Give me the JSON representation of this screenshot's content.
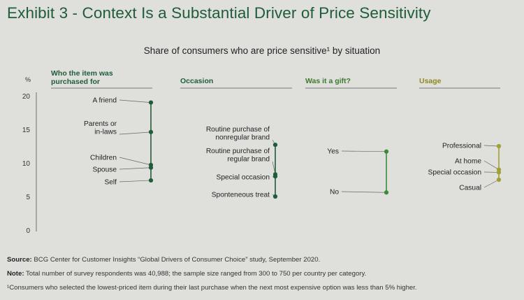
{
  "title": "Exhibit 3 - Context Is a Substantial Driver of Price Sensitivity",
  "subtitle": "Share of consumers who are price sensitive¹ by situation",
  "colors": {
    "title": "#1f5c3a",
    "dark_green": "#1f5c3a",
    "olive": "#a2a032",
    "medium_green": "#3d8a3d",
    "background": "#dfdfdc"
  },
  "chart_data": {
    "type": "scatter",
    "title": "Share of consumers who are price sensitive¹ by situation",
    "y_axis": {
      "unit": "%",
      "ticks": [
        0,
        5,
        10,
        15,
        20
      ],
      "ylim": [
        0,
        20
      ]
    },
    "grid": false,
    "legend": "none",
    "groups": [
      {
        "name": "Who the item was purchased for",
        "color": "#1f5c3a",
        "points": [
          {
            "label": "A friend",
            "value": 19.0
          },
          {
            "label": "Parents or in-laws",
            "value": 14.6
          },
          {
            "label": "Children",
            "value": 9.7
          },
          {
            "label": "Spouse",
            "value": 9.3
          },
          {
            "label": "Self",
            "value": 7.4
          }
        ]
      },
      {
        "name": "Occasion",
        "color": "#1f5c3a",
        "points": [
          {
            "label": "Routine purchase of nonregular brand",
            "value": 12.7
          },
          {
            "label": "Routine purchase of regular brand",
            "value": 8.3
          },
          {
            "label": "Special occasion",
            "value": 8.0
          },
          {
            "label": "Sponteneous treat",
            "value": 5.0
          }
        ]
      },
      {
        "name": "Was it a gift?",
        "color": "#3d8a3d",
        "points": [
          {
            "label": "Yes",
            "value": 11.7
          },
          {
            "label": "No",
            "value": 5.6
          }
        ]
      },
      {
        "name": "Usage",
        "color": "#a2a032",
        "points": [
          {
            "label": "Professional",
            "value": 12.5
          },
          {
            "label": "At home",
            "value": 9.0
          },
          {
            "label": "Special occasion",
            "value": 8.6
          },
          {
            "label": "Casual",
            "value": 7.5
          }
        ]
      }
    ]
  },
  "footer": {
    "source_label": "Source:",
    "source_text": " BCG Center for Customer Insights “Global Drivers of Consumer Choice” study, September 2020.",
    "note_label": "Note:",
    "note_text": " Total number of survey respondents was 40,988; the sample size ranged from 300 to 750 per country per category.",
    "footnote": "¹Consumers who selected the lowest-priced item during their last purchase when the next most expensive option was less than 5% higher."
  }
}
